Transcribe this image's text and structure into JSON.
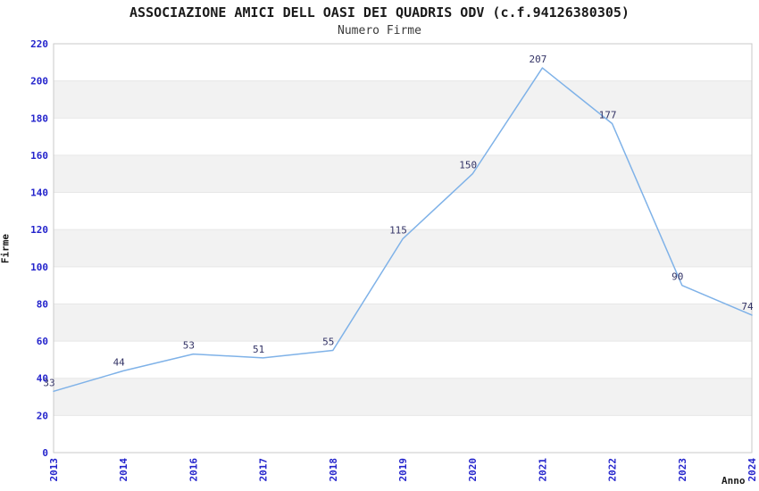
{
  "header": {
    "title": "ASSOCIAZIONE AMICI DELL OASI DEI QUADRIS ODV (c.f.94126380305)",
    "subtitle": "Numero Firme"
  },
  "chart_data": {
    "type": "line",
    "categories": [
      "2013",
      "2014",
      "2016",
      "2017",
      "2018",
      "2019",
      "2020",
      "2021",
      "2022",
      "2023",
      "2024"
    ],
    "values": [
      33,
      44,
      53,
      51,
      55,
      115,
      150,
      207,
      177,
      90,
      74
    ],
    "title": "ASSOCIAZIONE AMICI DELL OASI DEI QUADRIS ODV (c.f.94126380305)",
    "subtitle": "Numero Firme",
    "xlabel": "Anno",
    "ylabel": "Firme",
    "ylim": [
      0,
      220
    ],
    "ytick_step": 20,
    "yticks": [
      0,
      20,
      40,
      60,
      80,
      100,
      120,
      140,
      160,
      180,
      200,
      220
    ],
    "grid": "horizontal-bands-alternating",
    "legend": "none",
    "data_labels": true,
    "colors": {
      "line": "#7fb2e8",
      "tick_label": "#2424cc",
      "data_label": "#333366",
      "band_fill": "#f2f2f2",
      "gridline": "#e7e7e7",
      "plot_border": "#c9c9c9",
      "text": "#1a1a1a",
      "background": "#ffffff"
    }
  }
}
